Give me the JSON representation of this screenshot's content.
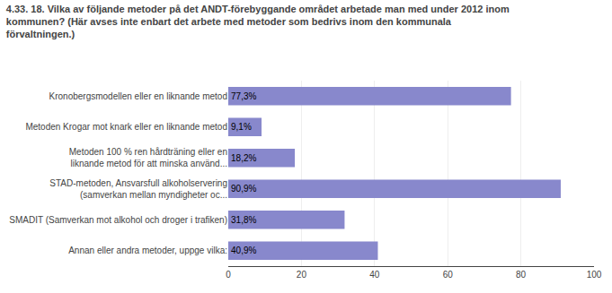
{
  "chart_data": {
    "type": "bar",
    "orientation": "horizontal",
    "title": "4.33. 18. Vilka av följande metoder på det ANDT-förebyggande området arbetade man med under 2012 inom\nkommunen? (Här avses inte enbart det arbete med metoder som bedrivs inom den kommunala\nförvaltningen.)",
    "categories": [
      "Kronobergsmodellen eller en liknande metod",
      "Metoden Krogar mot knark eller en liknande metod",
      "Metoden 100 % ren hårdträning eller en\nliknande metod för att minska använd...",
      "STAD-metoden, Ansvarsfull alkoholservering\n(samverkan mellan myndigheter oc...",
      "SMADIT (Samverkan mot alkohol och droger i trafiken)",
      "Annan eller andra metoder, uppge vilka:"
    ],
    "values": [
      77.3,
      9.1,
      18.2,
      90.9,
      31.8,
      40.9
    ],
    "value_labels": [
      "77,3%",
      "9,1%",
      "18,2%",
      "90,9%",
      "31,8%",
      "40,9%"
    ],
    "data_labels": true,
    "color": "#8888cc",
    "xlim": [
      0,
      100
    ],
    "xticks": [
      0,
      20,
      40,
      60,
      80,
      100
    ],
    "grid": true
  }
}
